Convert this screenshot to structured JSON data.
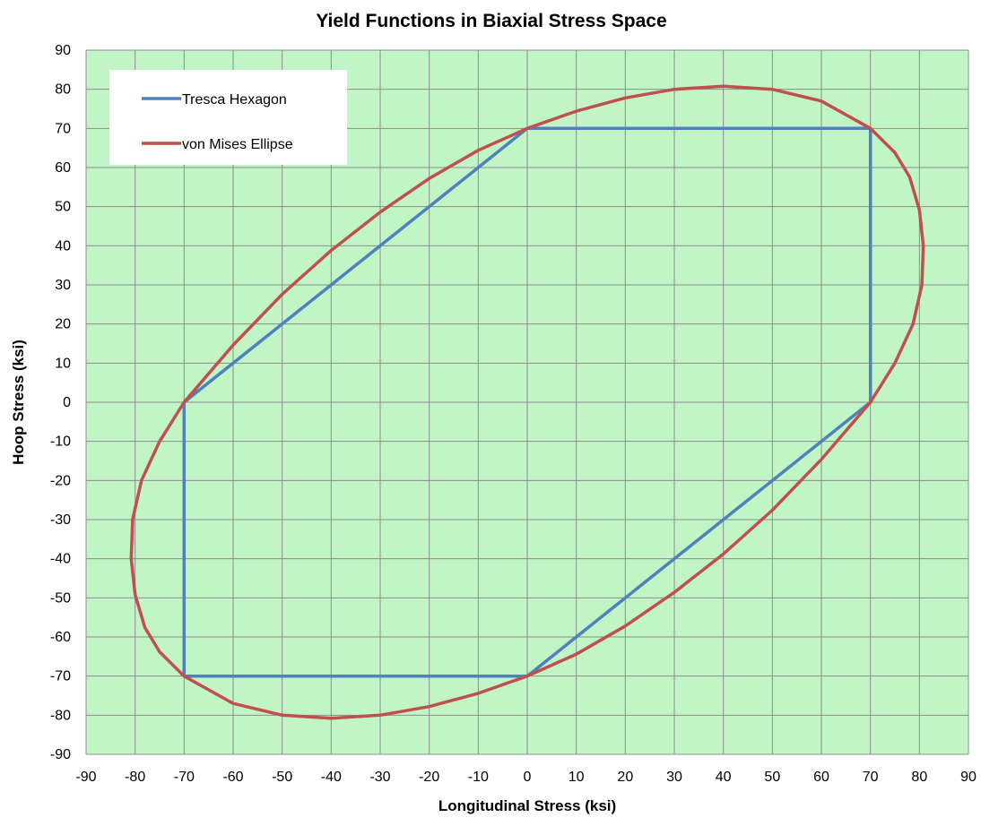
{
  "chart_data": {
    "type": "line",
    "title": "Yield Functions in Biaxial Stress Space",
    "xlabel": "Longitudinal Stress (ksi)",
    "ylabel": "Hoop Stress (ksi)",
    "xlim": [
      -90,
      90
    ],
    "ylim": [
      -90,
      90
    ],
    "xticks": [
      "-90",
      "-80",
      "-70",
      "-60",
      "-50",
      "-40",
      "-30",
      "-20",
      "-10",
      "0",
      "10",
      "20",
      "30",
      "40",
      "50",
      "60",
      "70",
      "80",
      "90"
    ],
    "yticks": [
      "90",
      "80",
      "70",
      "60",
      "50",
      "40",
      "30",
      "20",
      "10",
      "0",
      "-10",
      "-20",
      "-30",
      "-40",
      "-50",
      "-60",
      "-70",
      "-80",
      "-90"
    ],
    "grid": true,
    "plot_background": "#c1f5c6",
    "legend_position": "top-left",
    "series": [
      {
        "name": "Tresca Hexagon",
        "color": "#4f81bd",
        "points": [
          [
            0,
            70
          ],
          [
            70,
            70
          ],
          [
            70,
            0
          ],
          [
            0,
            -70
          ],
          [
            -70,
            -70
          ],
          [
            -70,
            0
          ],
          [
            0,
            70
          ]
        ]
      },
      {
        "name": "von Mises Ellipse",
        "color": "#c0504d",
        "points": [
          [
            0,
            70
          ],
          [
            10,
            74.4
          ],
          [
            20,
            77.8
          ],
          [
            30,
            80.0
          ],
          [
            40,
            80.8
          ],
          [
            50,
            80.0
          ],
          [
            60,
            77.0
          ],
          [
            70,
            70
          ],
          [
            75,
            63.8
          ],
          [
            78,
            57.6
          ],
          [
            80,
            49.2
          ],
          [
            80.8,
            40
          ],
          [
            80.5,
            30
          ],
          [
            78.7,
            20
          ],
          [
            75,
            10
          ],
          [
            70,
            0
          ],
          [
            60,
            -14.6
          ],
          [
            50,
            -27.6
          ],
          [
            40,
            -38.8
          ],
          [
            30,
            -48.6
          ],
          [
            20,
            -57.2
          ],
          [
            10,
            -64.4
          ],
          [
            0,
            -70
          ],
          [
            -10,
            -74.4
          ],
          [
            -20,
            -77.8
          ],
          [
            -30,
            -80.0
          ],
          [
            -40,
            -80.8
          ],
          [
            -50,
            -80.0
          ],
          [
            -60,
            -77.0
          ],
          [
            -70,
            -70
          ],
          [
            -75,
            -63.8
          ],
          [
            -78,
            -57.6
          ],
          [
            -80,
            -49.2
          ],
          [
            -80.8,
            -40
          ],
          [
            -80.5,
            -30
          ],
          [
            -78.7,
            -20
          ],
          [
            -75,
            -10
          ],
          [
            -70,
            0
          ],
          [
            -60,
            14.6
          ],
          [
            -50,
            27.6
          ],
          [
            -40,
            38.8
          ],
          [
            -30,
            48.6
          ],
          [
            -20,
            57.2
          ],
          [
            -10,
            64.4
          ],
          [
            0,
            70
          ]
        ]
      }
    ]
  }
}
